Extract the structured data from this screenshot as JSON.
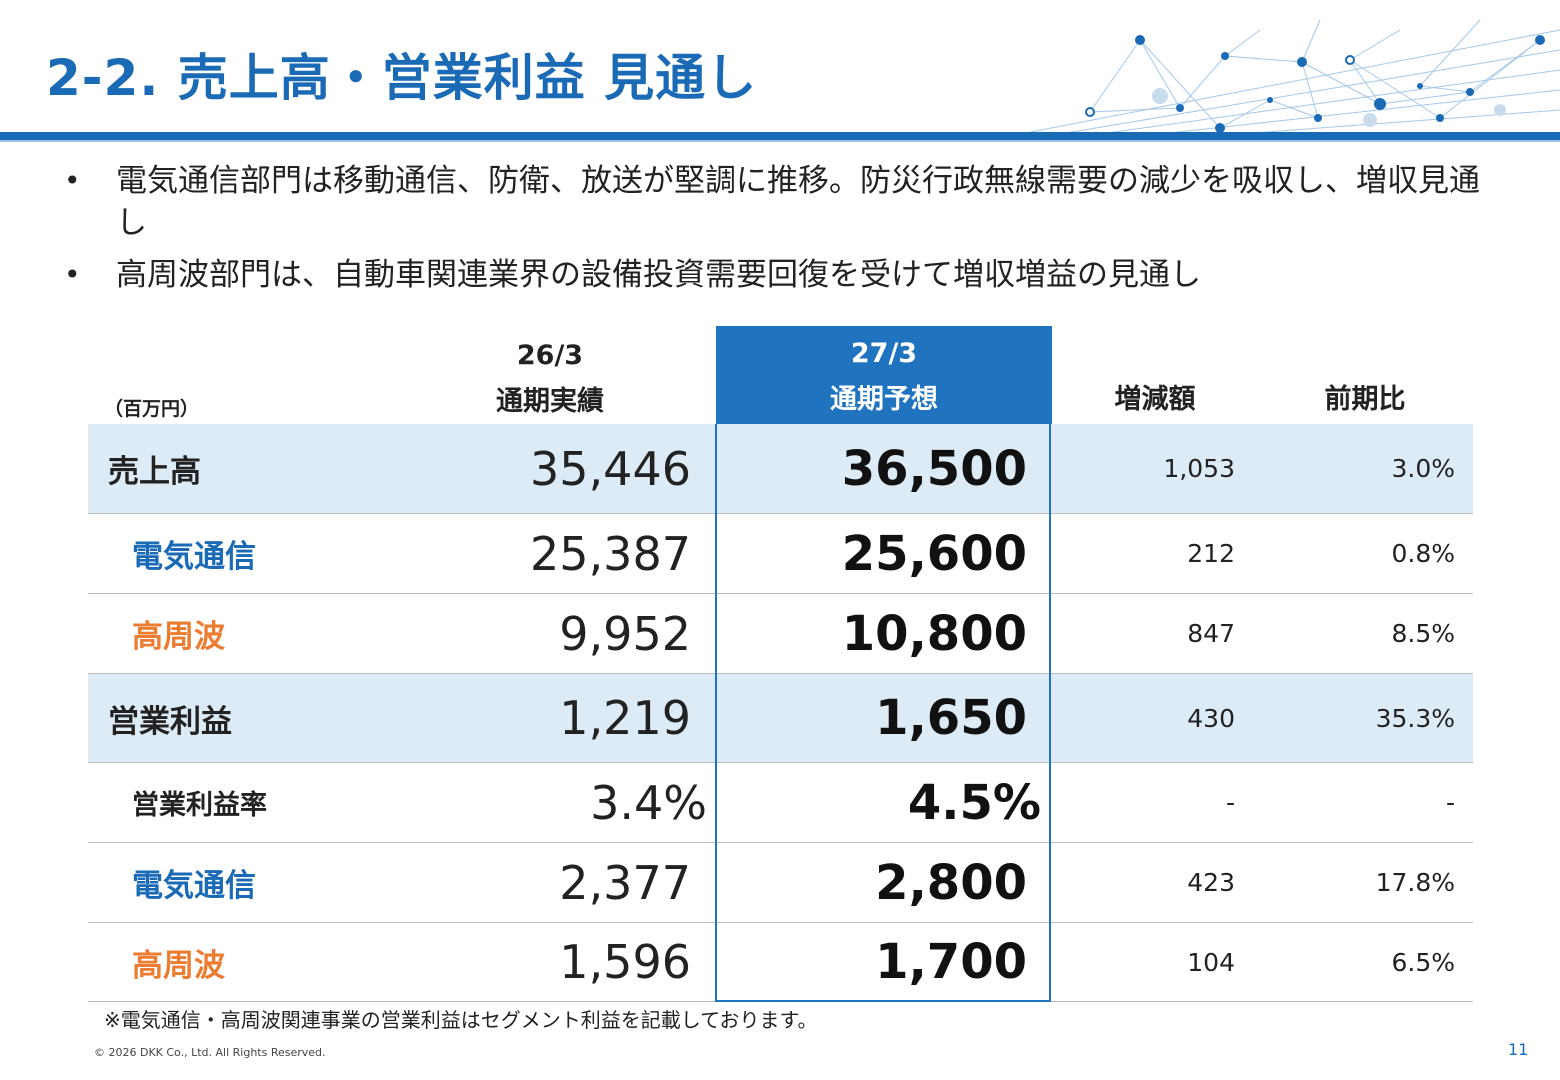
{
  "slide": {
    "title": "2-2. 売上高・営業利益 見通し",
    "bullets": [
      "電気通信部門は移動通信、防衛、放送が堅調に推移。防災行政無線需要の減少を吸収し、増収見通し",
      "高周波部門は、自動車関連業界の設備投資需要回復を受けて増収増益の見通し"
    ],
    "bullet_symbol": "•",
    "unit_label": "（百万円）",
    "columns": {
      "actual_period": "26/3",
      "actual_label": "通期実績",
      "forecast_period": "27/3",
      "forecast_label": "通期予想",
      "change_label": "増減額",
      "ratio_label": "前期比"
    },
    "rows": [
      {
        "label": "売上高",
        "actual": "35,446",
        "forecast": "36,500",
        "change": "1,053",
        "ratio": "3.0%"
      },
      {
        "label": "電気通信",
        "actual": "25,387",
        "forecast": "25,600",
        "change": "212",
        "ratio": "0.8%"
      },
      {
        "label": "高周波",
        "actual": "9,952",
        "forecast": "10,800",
        "change": "847",
        "ratio": "8.5%"
      },
      {
        "label": "営業利益",
        "actual": "1,219",
        "forecast": "1,650",
        "change": "430",
        "ratio": "35.3%"
      },
      {
        "label": "営業利益率",
        "actual": "3.4%",
        "forecast": "4.5%",
        "change": "-",
        "ratio": "-"
      },
      {
        "label": "電気通信",
        "actual": "2,377",
        "forecast": "2,800",
        "change": "423",
        "ratio": "17.8%"
      },
      {
        "label": "高周波",
        "actual": "1,596",
        "forecast": "1,700",
        "change": "104",
        "ratio": "6.5%"
      }
    ],
    "note": "※電気通信・高周波関連事業の営業利益はセグメント利益を記載しております。",
    "copyright": "© 2026 DKK Co., Ltd. All Rights Reserved.",
    "page_number": "11"
  },
  "colors": {
    "brand_blue": "#1a6ab5",
    "forecast_header": "#1f73bf",
    "row_shade": "#ddebf7",
    "segment_blue": "#1a6ab5",
    "segment_orange": "#ec7c30"
  },
  "icons": {
    "header_decoration": "network-graphic"
  }
}
